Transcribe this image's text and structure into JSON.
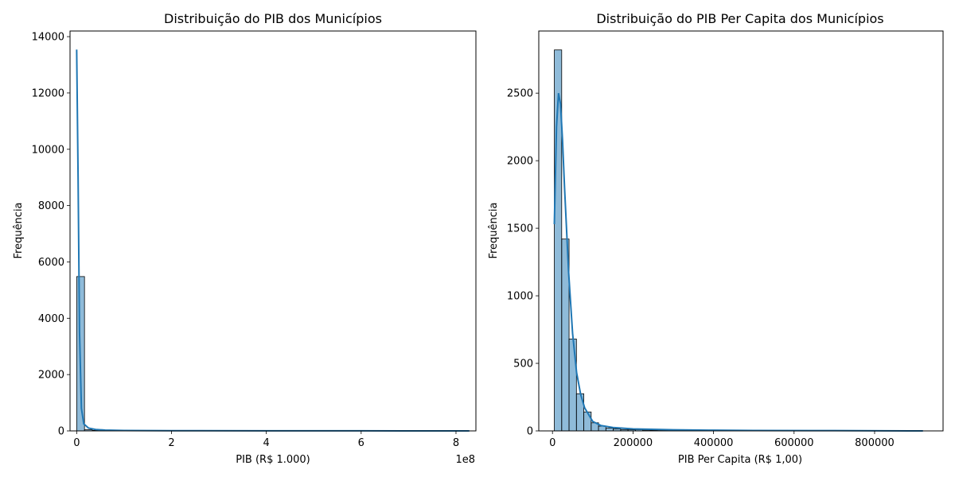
{
  "chart_data": [
    {
      "type": "bar",
      "title": "Distribuição do PIB dos Municípios",
      "xlabel": "PIB (R$ 1.000)",
      "ylabel": "Frequência",
      "x_offset_label": "1e8",
      "x_unit_scale": 100000000,
      "xlim": [
        -14000000,
        842000000
      ],
      "ylim": [
        0,
        14200
      ],
      "x_ticks": [
        0,
        200000000,
        400000000,
        600000000,
        800000000
      ],
      "x_tick_labels": [
        "0",
        "2",
        "4",
        "6",
        "8"
      ],
      "y_ticks": [
        0,
        2000,
        4000,
        6000,
        8000,
        10000,
        12000,
        14000
      ],
      "y_tick_labels": [
        "0",
        "2000",
        "4000",
        "6000",
        "8000",
        "10000",
        "12000",
        "14000"
      ],
      "bin_start": 1000,
      "bin_width": 16500000,
      "counts": [
        5480,
        40,
        18,
        10,
        7,
        5,
        4,
        3,
        3,
        2,
        2,
        1,
        1,
        1,
        1,
        1,
        1,
        1,
        0,
        1,
        0,
        1,
        0,
        0,
        1,
        0,
        0,
        0,
        1,
        0,
        0,
        0,
        0,
        0,
        0,
        1,
        0,
        0,
        0,
        0,
        0,
        0,
        0,
        0,
        0,
        0,
        0,
        0,
        0,
        1
      ],
      "kde": {
        "x": [
          1000,
          3000000,
          6000000,
          10000000,
          15000000,
          25000000,
          40000000,
          60000000,
          100000000,
          200000000,
          400000000,
          600000000,
          828000000
        ],
        "y": [
          13540,
          9000,
          3500,
          800,
          250,
          100,
          50,
          30,
          15,
          8,
          4,
          2,
          0
        ]
      },
      "bar_color": "#1f77b4",
      "line_color": "#1f77b4",
      "grid": false
    },
    {
      "type": "bar",
      "title": "Distribuição do PIB Per Capita dos Municípios",
      "xlabel": "PIB Per Capita (R$ 1,00)",
      "ylabel": "Frequência",
      "xlim": [
        -34000,
        970000
      ],
      "ylim": [
        0,
        2960
      ],
      "x_ticks": [
        0,
        200000,
        400000,
        600000,
        800000
      ],
      "x_tick_labels": [
        "0",
        "200000",
        "400000",
        "600000",
        "800000"
      ],
      "y_ticks": [
        0,
        500,
        1000,
        1500,
        2000,
        2500
      ],
      "y_tick_labels": [
        "0",
        "500",
        "1000",
        "1500",
        "2000",
        "2500"
      ],
      "bin_start": 4600,
      "bin_width": 18300,
      "counts": [
        2820,
        1420,
        680,
        275,
        140,
        60,
        35,
        20,
        15,
        10,
        8,
        9,
        6,
        4,
        3,
        3,
        2,
        2,
        2,
        1,
        2,
        1,
        1,
        1,
        1,
        1,
        1,
        1,
        1,
        1,
        0,
        1,
        0,
        1,
        0,
        1,
        0,
        0,
        1,
        0,
        0,
        0,
        0,
        0,
        0,
        0,
        0,
        0,
        0,
        1
      ],
      "kde": {
        "x": [
          4600,
          10000,
          15000,
          20000,
          25000,
          30000,
          40000,
          50000,
          60000,
          70000,
          80000,
          100000,
          120000,
          150000,
          200000,
          300000,
          400000,
          500000,
          700000,
          920000
        ],
        "y": [
          1530,
          2250,
          2500,
          2420,
          2150,
          1800,
          1180,
          720,
          430,
          270,
          170,
          70,
          40,
          25,
          15,
          8,
          5,
          3,
          2,
          0
        ]
      },
      "bar_color": "#1f77b4",
      "line_color": "#1f77b4",
      "grid": false
    }
  ]
}
